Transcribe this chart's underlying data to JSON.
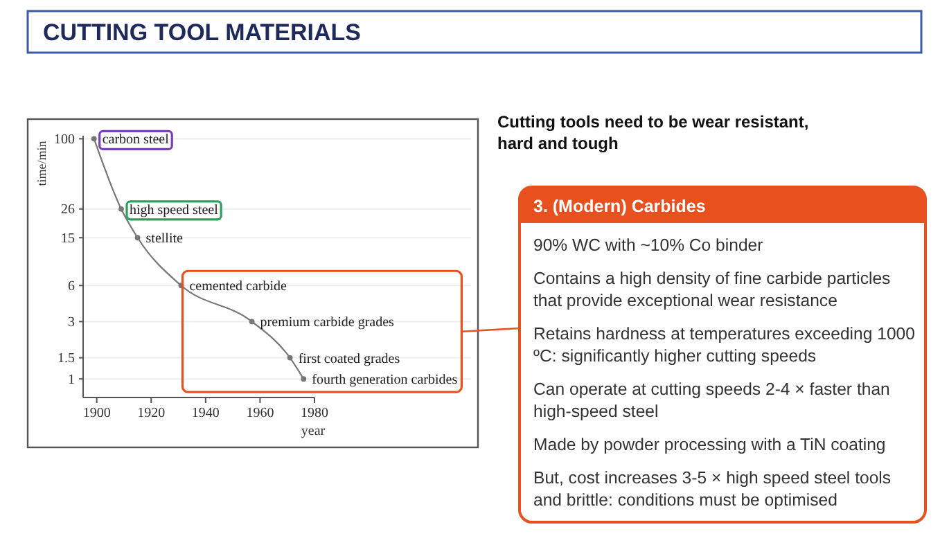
{
  "chart_data": {
    "type": "line",
    "title": "CUTTING TOOL MATERIALS",
    "subtitle": "Cutting tools need to be wear resistant, hard and tough",
    "xlabel": "year",
    "ylabel": "time/min",
    "x": [
      1899,
      1909,
      1915,
      1931,
      1957,
      1971,
      1976
    ],
    "series": [
      {
        "color": "#777777",
        "values": [
          100,
          26,
          15,
          6,
          3,
          1.5,
          1
        ]
      }
    ],
    "xlim": [
      1895,
      1980
    ],
    "xticks": [
      1900,
      1920,
      1940,
      1960,
      1980
    ],
    "ylim": [
      0.7,
      106
    ],
    "yticks": [
      1,
      1.5,
      3,
      6,
      15,
      26,
      100
    ],
    "log": true,
    "grid": "y",
    "marker": "circle",
    "line_style": "solid",
    "annotations": [
      {
        "text": "carbon steel",
        "x": 1899,
        "y": 100
      },
      {
        "text": "high speed steel",
        "x": 1909,
        "y": 26
      },
      {
        "text": "stellite",
        "x": 1915,
        "y": 15
      },
      {
        "text": "cemented carbide",
        "x": 1931,
        "y": 6
      },
      {
        "text": "premium carbide grades",
        "x": 1957,
        "y": 3
      },
      {
        "text": "first coated grades",
        "x": 1971,
        "y": 1.5
      },
      {
        "text": "fourth generation carbides",
        "x": 1976,
        "y": 1
      },
      "3. (Modern) Carbides",
      "90% WC with ~10% Co binder",
      "Contains a high density of fine carbide particles that provide exceptional wear resistance",
      "Retains hardness at temperatures exceeding 1000 ºC: significantly higher cutting speeds",
      "Can operate at cutting speeds 2-4 × faster than high-speed steel",
      "Made by powder processing with a TiN coating",
      "But, cost increases 3-5 × high speed steel tools and brittle: conditions must be optimised"
    ]
  }
}
